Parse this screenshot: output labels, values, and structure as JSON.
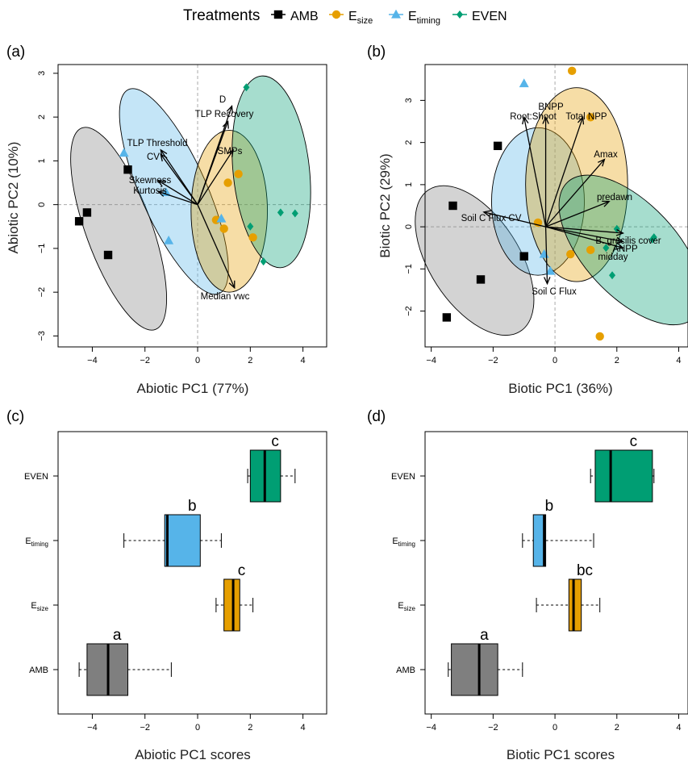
{
  "legend": {
    "title": "Treatments",
    "items": [
      {
        "key": "AMB",
        "label": "AMB",
        "sub": "",
        "marker": "square",
        "color": "#000000"
      },
      {
        "key": "Esize",
        "label": "E",
        "sub": "size",
        "marker": "circle",
        "color": "#e69f00"
      },
      {
        "key": "Etiming",
        "label": "E",
        "sub": "timing",
        "marker": "triangle",
        "color": "#56b4e9"
      },
      {
        "key": "EVEN",
        "label": "EVEN",
        "sub": "",
        "marker": "diamond",
        "color": "#009e73"
      }
    ]
  },
  "colors": {
    "AMB": "#000000",
    "Esize": "#e69f00",
    "Etiming": "#56b4e9",
    "EVEN": "#009e73",
    "AMB_box": "#7f7f7f",
    "AMB_ellipse": "#808080"
  },
  "panels": {
    "a": "(a)",
    "b": "(b)",
    "c": "(c)",
    "d": "(d)"
  },
  "chart_data": [
    {
      "id": "a",
      "type": "scatter",
      "xlabel": "Abiotic PC1 (77%)",
      "ylabel": "Abiotic PC2 (10%)",
      "xlim": [
        -5.3,
        4.9
      ],
      "ylim": [
        -3.25,
        3.2
      ],
      "xticks": [
        -4,
        -2,
        0,
        2,
        4
      ],
      "yticks": [
        -3,
        -2,
        -1,
        0,
        1,
        2,
        3
      ],
      "reference_lines": {
        "x": 0,
        "y": 0
      },
      "points": [
        {
          "g": "AMB",
          "x": -4.5,
          "y": -0.38
        },
        {
          "g": "AMB",
          "x": -4.2,
          "y": -0.18
        },
        {
          "g": "AMB",
          "x": -3.4,
          "y": -1.15
        },
        {
          "g": "AMB",
          "x": -2.65,
          "y": 0.8
        },
        {
          "g": "Esize",
          "x": 1.15,
          "y": 0.5
        },
        {
          "g": "Esize",
          "x": 1.55,
          "y": 0.7
        },
        {
          "g": "Esize",
          "x": 0.7,
          "y": -0.35
        },
        {
          "g": "Esize",
          "x": 1.0,
          "y": -0.55
        },
        {
          "g": "Esize",
          "x": 2.1,
          "y": -0.75
        },
        {
          "g": "Etiming",
          "x": -2.8,
          "y": 1.18
        },
        {
          "g": "Etiming",
          "x": -1.2,
          "y": 0.28
        },
        {
          "g": "Etiming",
          "x": -1.1,
          "y": -0.82
        },
        {
          "g": "Etiming",
          "x": 0.9,
          "y": -0.32
        },
        {
          "g": "EVEN",
          "x": 1.85,
          "y": 2.68
        },
        {
          "g": "EVEN",
          "x": 2.0,
          "y": -0.5
        },
        {
          "g": "EVEN",
          "x": 2.5,
          "y": -1.3
        },
        {
          "g": "EVEN",
          "x": 3.15,
          "y": -0.18
        },
        {
          "g": "EVEN",
          "x": 3.7,
          "y": -0.2
        }
      ],
      "ellipses": [
        {
          "g": "AMB",
          "cx": -3.0,
          "cy": -0.55,
          "rx": 1.25,
          "ry": 2.45,
          "angle": 20
        },
        {
          "g": "Etiming",
          "cx": -0.9,
          "cy": 0.3,
          "rx": 1.25,
          "ry": 2.55,
          "angle": 24
        },
        {
          "g": "Esize",
          "cx": 1.2,
          "cy": -0.15,
          "rx": 1.45,
          "ry": 1.85,
          "angle": 0
        },
        {
          "g": "EVEN",
          "cx": 2.8,
          "cy": 0.75,
          "rx": 1.45,
          "ry": 2.2,
          "angle": 6
        }
      ],
      "origin": [
        0,
        0
      ],
      "vectors": [
        {
          "label": "D",
          "x": 1.3,
          "y": 2.25
        },
        {
          "label": "TLP Recovery",
          "x": 1.15,
          "y": 1.9
        },
        {
          "label": "SMPs",
          "x": 1.35,
          "y": 1.25
        },
        {
          "label": "TLP Threshold",
          "x": -1.4,
          "y": 1.25
        },
        {
          "label": "CV",
          "x": -1.4,
          "y": 1.15
        },
        {
          "label": "Skewness",
          "x": -1.5,
          "y": 0.55
        },
        {
          "label": "Kurtosis",
          "x": -1.5,
          "y": 0.3
        },
        {
          "label": "Median vwc",
          "x": 1.4,
          "y": -1.9
        }
      ]
    },
    {
      "id": "b",
      "type": "scatter",
      "xlabel": "Biotic PC1 (36%)",
      "ylabel": "Biotic PC2 (29%)",
      "xlim": [
        -4.2,
        4.3
      ],
      "ylim": [
        -2.85,
        3.85
      ],
      "xticks": [
        -4,
        -2,
        0,
        2,
        4
      ],
      "yticks": [
        -2,
        -1,
        0,
        1,
        2,
        3
      ],
      "reference_lines": {
        "x": 0,
        "y": 0
      },
      "points": [
        {
          "g": "AMB",
          "x": -3.5,
          "y": -2.15
        },
        {
          "g": "AMB",
          "x": -3.3,
          "y": 0.5
        },
        {
          "g": "AMB",
          "x": -2.4,
          "y": -1.25
        },
        {
          "g": "AMB",
          "x": -1.85,
          "y": 1.92
        },
        {
          "g": "AMB",
          "x": -1.0,
          "y": -0.7
        },
        {
          "g": "Esize",
          "x": 0.55,
          "y": 3.7
        },
        {
          "g": "Esize",
          "x": 1.15,
          "y": 2.6
        },
        {
          "g": "Esize",
          "x": -0.55,
          "y": 0.1
        },
        {
          "g": "Esize",
          "x": 0.5,
          "y": -0.65
        },
        {
          "g": "Esize",
          "x": 1.15,
          "y": -0.55
        },
        {
          "g": "Esize",
          "x": 1.45,
          "y": -2.6
        },
        {
          "g": "Etiming",
          "x": -1.0,
          "y": 3.4
        },
        {
          "g": "Etiming",
          "x": -0.35,
          "y": -0.65
        },
        {
          "g": "Etiming",
          "x": -0.15,
          "y": -1.05
        },
        {
          "g": "EVEN",
          "x": 1.65,
          "y": -0.5
        },
        {
          "g": "EVEN",
          "x": 2.0,
          "y": -0.05
        },
        {
          "g": "EVEN",
          "x": 1.85,
          "y": -1.15
        },
        {
          "g": "EVEN",
          "x": 3.15,
          "y": -0.3
        },
        {
          "g": "EVEN",
          "x": 3.2,
          "y": -0.25
        }
      ],
      "ellipses": [
        {
          "g": "AMB",
          "cx": -2.6,
          "cy": -0.8,
          "rx": 1.45,
          "ry": 2.0,
          "angle": 33
        },
        {
          "g": "Etiming",
          "cx": -0.55,
          "cy": 0.6,
          "rx": 1.5,
          "ry": 1.75,
          "angle": 0
        },
        {
          "g": "Esize",
          "cx": 0.7,
          "cy": 1.0,
          "rx": 1.65,
          "ry": 2.3,
          "angle": 0
        },
        {
          "g": "EVEN",
          "cx": 2.45,
          "cy": -0.55,
          "rx": 1.5,
          "ry": 2.2,
          "angle": 43
        }
      ],
      "origin": [
        -0.3,
        0
      ],
      "vectors": [
        {
          "label": "BNPP",
          "x": -0.3,
          "y": 2.6
        },
        {
          "label": "Root:Shoot",
          "x": -1.0,
          "y": 2.6
        },
        {
          "label": "Total NPP",
          "x": 0.9,
          "y": 2.6
        },
        {
          "label": "Amax",
          "x": 1.6,
          "y": 1.6
        },
        {
          "label": "predawn",
          "x": 1.75,
          "y": 0.6
        },
        {
          "label": "Soil C Flux CV",
          "x": -2.3,
          "y": 0.35
        },
        {
          "label": "B. gracilis cover",
          "x": 2.2,
          "y": -0.15
        },
        {
          "label": "ANPP",
          "x": 2.2,
          "y": -0.35
        },
        {
          "label": "midday",
          "x": 2.2,
          "y": -0.5
        },
        {
          "label": "Soil C Flux",
          "x": -0.25,
          "y": -1.35
        }
      ]
    },
    {
      "id": "c",
      "type": "box",
      "xlabel": "Abiotic PC1 scores",
      "xlim": [
        -5.3,
        4.9
      ],
      "xticks": [
        -4,
        -2,
        0,
        2,
        4
      ],
      "boxes": [
        {
          "g": "EVEN",
          "label": "EVEN",
          "sub": "",
          "min": 1.9,
          "q1": 2.0,
          "median": 2.55,
          "q3": 3.15,
          "max": 3.7,
          "letter": "c"
        },
        {
          "g": "Etiming",
          "label": "E",
          "sub": "timing",
          "min": -2.8,
          "q1": -1.25,
          "median": -1.15,
          "q3": 0.1,
          "max": 0.9,
          "letter": "b"
        },
        {
          "g": "Esize",
          "label": "E",
          "sub": "size",
          "min": 0.7,
          "q1": 1.0,
          "median": 1.35,
          "q3": 1.6,
          "max": 2.1,
          "letter": "c"
        },
        {
          "g": "AMB",
          "label": "AMB",
          "sub": "",
          "min": -4.5,
          "q1": -4.2,
          "median": -3.4,
          "q3": -2.65,
          "max": -1.0,
          "letter": "a"
        }
      ]
    },
    {
      "id": "d",
      "type": "box",
      "xlabel": "Biotic PC1 scores",
      "xlim": [
        -4.2,
        4.3
      ],
      "xticks": [
        -4,
        -2,
        0,
        2,
        4
      ],
      "boxes": [
        {
          "g": "EVEN",
          "label": "EVEN",
          "sub": "",
          "min": 1.15,
          "q1": 1.3,
          "median": 1.8,
          "q3": 3.15,
          "max": 3.2,
          "letter": "c"
        },
        {
          "g": "Etiming",
          "label": "E",
          "sub": "timing",
          "min": -1.05,
          "q1": -0.7,
          "median": -0.35,
          "q3": -0.3,
          "max": 1.25,
          "letter": "b"
        },
        {
          "g": "Esize",
          "label": "E",
          "sub": "size",
          "min": -0.6,
          "q1": 0.45,
          "median": 0.6,
          "q3": 0.85,
          "max": 1.45,
          "letter": "bc"
        },
        {
          "g": "AMB",
          "label": "AMB",
          "sub": "",
          "min": -3.45,
          "q1": -3.35,
          "median": -2.45,
          "q3": -1.85,
          "max": -1.05,
          "letter": "a"
        }
      ]
    }
  ]
}
